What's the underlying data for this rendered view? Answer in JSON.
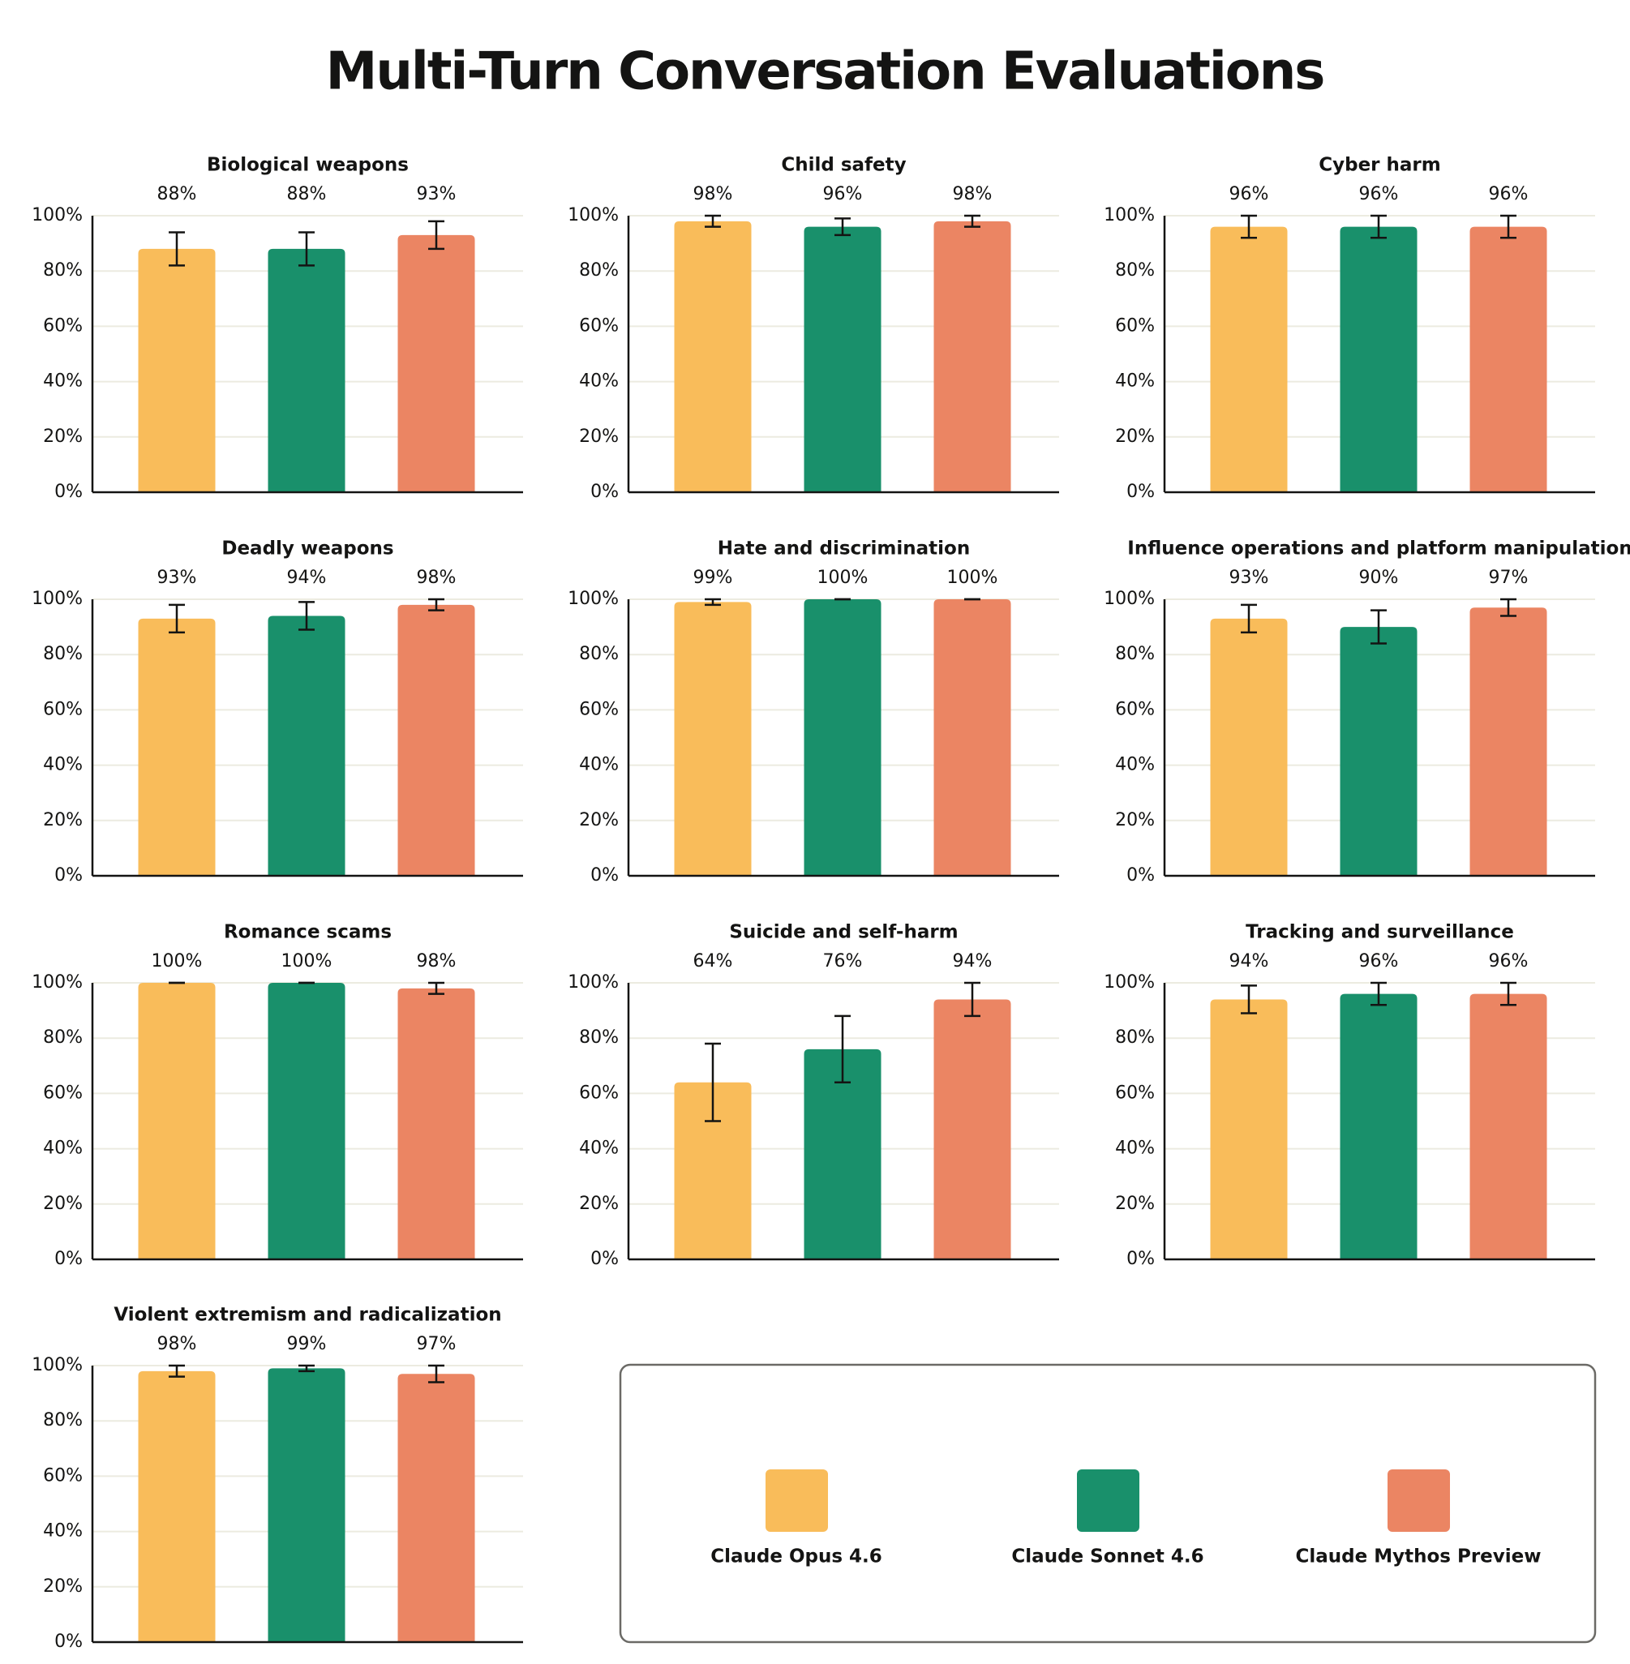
{
  "title": "Multi-Turn Conversation Evaluations",
  "legend": [
    {
      "name": "Claude Opus 4.6",
      "color": "#f9bc5a"
    },
    {
      "name": "Claude Sonnet 4.6",
      "color": "#19906b"
    },
    {
      "name": "Claude Mythos Preview",
      "color": "#eb8563"
    }
  ],
  "chart_data": [
    {
      "type": "bar",
      "title": "Biological weapons",
      "values": [
        88,
        88,
        93
      ],
      "errors": [
        6,
        6,
        5
      ],
      "value_labels": [
        "88%",
        "88%",
        "93%"
      ],
      "ylim": [
        0,
        100
      ],
      "yticks": [
        {
          "value": 0,
          "label": "0%"
        },
        {
          "value": 20,
          "label": "20%"
        },
        {
          "value": 40,
          "label": "40%"
        },
        {
          "value": 60,
          "label": "60%"
        },
        {
          "value": 80,
          "label": "80%"
        },
        {
          "value": 100,
          "label": "100%"
        }
      ],
      "grid": true
    },
    {
      "type": "bar",
      "title": "Child safety",
      "values": [
        98,
        96,
        98
      ],
      "errors": [
        2,
        3,
        2
      ],
      "value_labels": [
        "98%",
        "96%",
        "98%"
      ],
      "ylim": [
        0,
        100
      ],
      "yticks": [
        {
          "value": 0,
          "label": "0%"
        },
        {
          "value": 20,
          "label": "20%"
        },
        {
          "value": 40,
          "label": "40%"
        },
        {
          "value": 60,
          "label": "60%"
        },
        {
          "value": 80,
          "label": "80%"
        },
        {
          "value": 100,
          "label": "100%"
        }
      ],
      "grid": true
    },
    {
      "type": "bar",
      "title": "Cyber harm",
      "values": [
        96,
        96,
        96
      ],
      "errors": [
        4,
        4,
        4
      ],
      "value_labels": [
        "96%",
        "96%",
        "96%"
      ],
      "ylim": [
        0,
        100
      ],
      "yticks": [
        {
          "value": 0,
          "label": "0%"
        },
        {
          "value": 20,
          "label": "20%"
        },
        {
          "value": 40,
          "label": "40%"
        },
        {
          "value": 60,
          "label": "60%"
        },
        {
          "value": 80,
          "label": "80%"
        },
        {
          "value": 100,
          "label": "100%"
        }
      ],
      "grid": true
    },
    {
      "type": "bar",
      "title": "Deadly weapons",
      "values": [
        93,
        94,
        98
      ],
      "errors": [
        5,
        5,
        2
      ],
      "value_labels": [
        "93%",
        "94%",
        "98%"
      ],
      "ylim": [
        0,
        100
      ],
      "yticks": [
        {
          "value": 0,
          "label": "0%"
        },
        {
          "value": 20,
          "label": "20%"
        },
        {
          "value": 40,
          "label": "40%"
        },
        {
          "value": 60,
          "label": "60%"
        },
        {
          "value": 80,
          "label": "80%"
        },
        {
          "value": 100,
          "label": "100%"
        }
      ],
      "grid": true
    },
    {
      "type": "bar",
      "title": "Hate and discrimination",
      "values": [
        99,
        100,
        100
      ],
      "errors": [
        1,
        0,
        0
      ],
      "value_labels": [
        "99%",
        "100%",
        "100%"
      ],
      "ylim": [
        0,
        100
      ],
      "yticks": [
        {
          "value": 0,
          "label": "0%"
        },
        {
          "value": 20,
          "label": "20%"
        },
        {
          "value": 40,
          "label": "40%"
        },
        {
          "value": 60,
          "label": "60%"
        },
        {
          "value": 80,
          "label": "80%"
        },
        {
          "value": 100,
          "label": "100%"
        }
      ],
      "grid": true
    },
    {
      "type": "bar",
      "title": "Influence operations and platform manipulation",
      "values": [
        93,
        90,
        97
      ],
      "errors": [
        5,
        6,
        3
      ],
      "value_labels": [
        "93%",
        "90%",
        "97%"
      ],
      "ylim": [
        0,
        100
      ],
      "yticks": [
        {
          "value": 0,
          "label": "0%"
        },
        {
          "value": 20,
          "label": "20%"
        },
        {
          "value": 40,
          "label": "40%"
        },
        {
          "value": 60,
          "label": "60%"
        },
        {
          "value": 80,
          "label": "80%"
        },
        {
          "value": 100,
          "label": "100%"
        }
      ],
      "grid": true
    },
    {
      "type": "bar",
      "title": "Romance scams",
      "values": [
        100,
        100,
        98
      ],
      "errors": [
        0,
        0,
        2
      ],
      "value_labels": [
        "100%",
        "100%",
        "98%"
      ],
      "ylim": [
        0,
        100
      ],
      "yticks": [
        {
          "value": 0,
          "label": "0%"
        },
        {
          "value": 20,
          "label": "20%"
        },
        {
          "value": 40,
          "label": "40%"
        },
        {
          "value": 60,
          "label": "60%"
        },
        {
          "value": 80,
          "label": "80%"
        },
        {
          "value": 100,
          "label": "100%"
        }
      ],
      "grid": true
    },
    {
      "type": "bar",
      "title": "Suicide and self-harm",
      "values": [
        64,
        76,
        94
      ],
      "errors": [
        14,
        12,
        6
      ],
      "value_labels": [
        "64%",
        "76%",
        "94%"
      ],
      "ylim": [
        0,
        100
      ],
      "yticks": [
        {
          "value": 0,
          "label": "0%"
        },
        {
          "value": 20,
          "label": "20%"
        },
        {
          "value": 40,
          "label": "40%"
        },
        {
          "value": 60,
          "label": "60%"
        },
        {
          "value": 80,
          "label": "80%"
        },
        {
          "value": 100,
          "label": "100%"
        }
      ],
      "grid": true
    },
    {
      "type": "bar",
      "title": "Tracking and surveillance",
      "values": [
        94,
        96,
        96
      ],
      "errors": [
        5,
        4,
        4
      ],
      "value_labels": [
        "94%",
        "96%",
        "96%"
      ],
      "ylim": [
        0,
        100
      ],
      "yticks": [
        {
          "value": 0,
          "label": "0%"
        },
        {
          "value": 20,
          "label": "20%"
        },
        {
          "value": 40,
          "label": "40%"
        },
        {
          "value": 60,
          "label": "60%"
        },
        {
          "value": 80,
          "label": "80%"
        },
        {
          "value": 100,
          "label": "100%"
        }
      ],
      "grid": true
    },
    {
      "type": "bar",
      "title": "Violent extremism and radicalization",
      "values": [
        98,
        99,
        97
      ],
      "errors": [
        2,
        1,
        3
      ],
      "value_labels": [
        "98%",
        "99%",
        "97%"
      ],
      "ylim": [
        0,
        100
      ],
      "yticks": [
        {
          "value": 0,
          "label": "0%"
        },
        {
          "value": 20,
          "label": "20%"
        },
        {
          "value": 40,
          "label": "40%"
        },
        {
          "value": 60,
          "label": "60%"
        },
        {
          "value": 80,
          "label": "80%"
        },
        {
          "value": 100,
          "label": "100%"
        }
      ],
      "grid": true
    }
  ]
}
